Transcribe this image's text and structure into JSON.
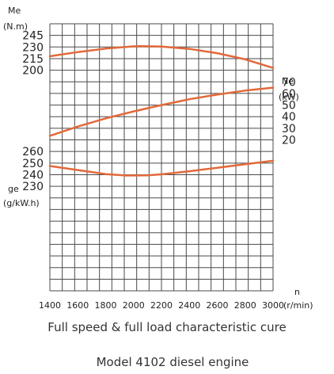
{
  "chart_data": {
    "type": "line",
    "title": "Full speed & full load characteristic cure",
    "subtitle": "Model 4102 diesel engine",
    "grid": true,
    "x": {
      "label": "n",
      "unit": "(r/min)",
      "ticks": [
        "1400",
        "1600",
        "1800",
        "2000",
        "2200",
        "2400",
        "2600",
        "2800",
        "3000"
      ],
      "range": [
        1400,
        3000
      ]
    },
    "axes": {
      "me": {
        "label": "Me",
        "unit": "(N.m)",
        "ticks": [
          "245",
          "230",
          "215",
          "200"
        ],
        "range": [
          200,
          245
        ]
      },
      "ne": {
        "label": "Ne",
        "unit": "(kW)",
        "ticks": [
          "70",
          "60",
          "50",
          "40",
          "30",
          "20"
        ],
        "range": [
          20,
          70
        ]
      },
      "ge": {
        "label": "ge",
        "unit": "(g/kW.h)",
        "ticks": [
          "260",
          "250",
          "240",
          "230"
        ],
        "range": [
          230,
          260
        ]
      }
    },
    "series": [
      {
        "axis": "me",
        "color": "#e2693a",
        "x": [
          1400,
          1600,
          1800,
          2000,
          2050,
          2200,
          2400,
          2600,
          2800,
          3000
        ],
        "y": [
          218.0,
          223.5,
          228.0,
          230.8,
          231.0,
          230.6,
          227.5,
          222.0,
          214.0,
          203.0
        ]
      },
      {
        "axis": "ne",
        "color": "#e2693a",
        "x": [
          1400,
          1600,
          1800,
          2000,
          2200,
          2400,
          2600,
          2800,
          3000
        ],
        "y": [
          23.5,
          31.5,
          38.5,
          44.5,
          50.0,
          55.0,
          59.0,
          62.5,
          65.0
        ]
      },
      {
        "axis": "ge",
        "color": "#e2693a",
        "x": [
          1400,
          1600,
          1800,
          1950,
          2100,
          2200,
          2400,
          2600,
          2800,
          3000
        ],
        "y": [
          247.5,
          244.0,
          240.5,
          239.3,
          239.5,
          240.3,
          243.0,
          246.0,
          249.0,
          252.0
        ]
      }
    ]
  }
}
